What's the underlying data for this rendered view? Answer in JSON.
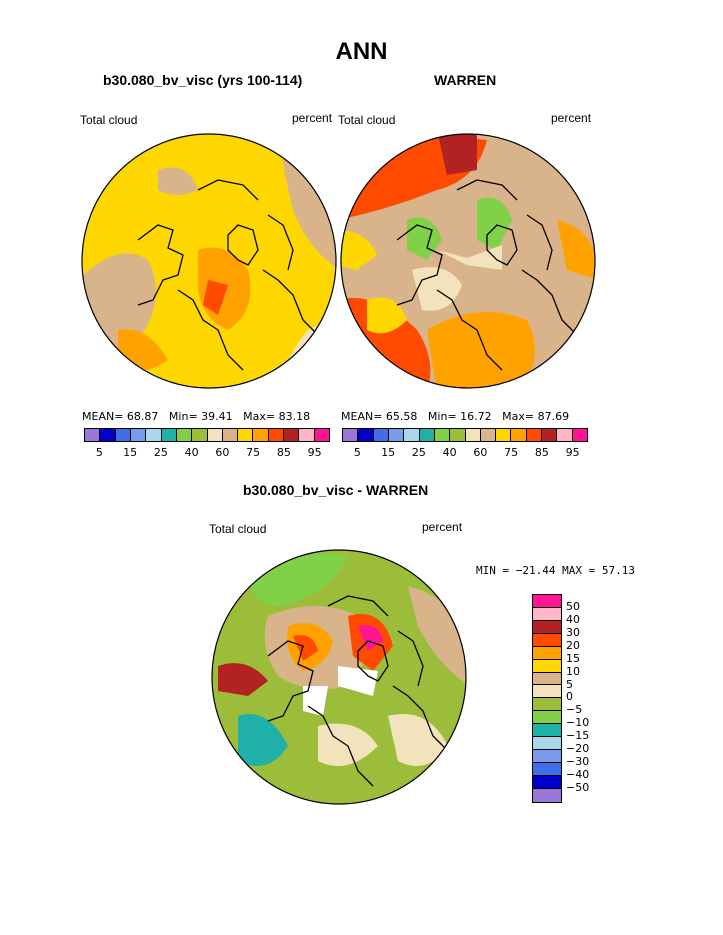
{
  "main_title": "ANN",
  "panels": {
    "left": {
      "title": "b30.080_bv_visc (yrs 100-114)",
      "var_label": "Total cloud",
      "units": "percent",
      "stats": {
        "mean_label": "MEAN=",
        "mean": "68.87",
        "min_label": "Min=",
        "min": "39.41",
        "max_label": "Max=",
        "max": "83.18"
      }
    },
    "right": {
      "title": "WARREN",
      "var_label": "Total cloud",
      "units": "percent",
      "stats": {
        "mean_label": "MEAN=",
        "mean": "65.58",
        "min_label": "Min=",
        "min": "16.72",
        "max_label": "Max=",
        "max": "87.69"
      }
    },
    "diff": {
      "title": "b30.080_bv_visc - WARREN",
      "var_label": "Total cloud",
      "units": "percent",
      "minmax": "MIN = −21.44  MAX =  57.13"
    }
  },
  "colorbar_top": {
    "colors": [
      "#9a76d6",
      "#0000c8",
      "#3f6ee8",
      "#7a9bea",
      "#a8d8ea",
      "#1fb0a8",
      "#80d048",
      "#9bbd3a",
      "#f2e3bd",
      "#d9b38a",
      "#ffd700",
      "#ffa200",
      "#ff4a00",
      "#b22222",
      "#ffb6c8",
      "#ff1493"
    ],
    "labels": [
      "5",
      "15",
      "25",
      "40",
      "60",
      "75",
      "85",
      "95"
    ]
  },
  "colorbar_diff": {
    "colors": [
      "#ff1493",
      "#ffb6c8",
      "#b22222",
      "#ff4a00",
      "#ffa200",
      "#ffd700",
      "#d9b38a",
      "#f2e3bd",
      "#9bbd3a",
      "#80d048",
      "#1fb0a8",
      "#a8d8ea",
      "#7a9bea",
      "#3f6ee8",
      "#0000c8",
      "#9a76d6"
    ],
    "labels": [
      "50",
      "40",
      "30",
      "20",
      "15",
      "10",
      "5",
      "0",
      "−5",
      "−10",
      "−15",
      "−20",
      "−30",
      "−40",
      "−50"
    ]
  },
  "map_palette": {
    "left": [
      "#ffd700",
      "#d9b38a",
      "#ffa200",
      "#f2e3bd",
      "#ff4a00"
    ],
    "right": [
      "#d9b38a",
      "#ffd700",
      "#ff4a00",
      "#ffa200",
      "#b22222",
      "#80d048",
      "#f2e3bd"
    ],
    "diff": [
      "#9bbd3a",
      "#80d048",
      "#d9b38a",
      "#f2e3bd",
      "#ffd700",
      "#ffa200",
      "#ff4a00",
      "#1fb0a8",
      "#b22222",
      "#ff1493"
    ]
  }
}
